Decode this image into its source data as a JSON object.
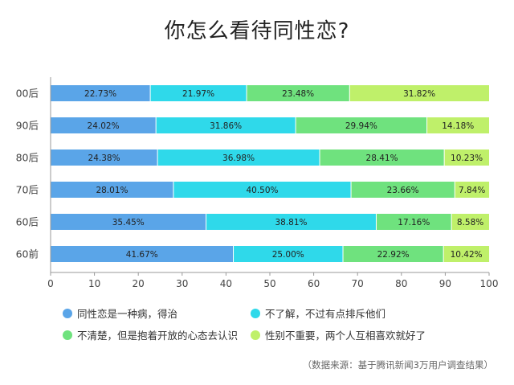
{
  "chart_data": {
    "type": "bar",
    "orientation": "horizontal",
    "stacked": true,
    "title": "你怎么看待同性恋?",
    "categories": [
      "00后",
      "90后",
      "80后",
      "70后",
      "60后",
      "60前"
    ],
    "series": [
      {
        "name": "同性恋是一种病，得治",
        "color": "#5aa5e8",
        "values": [
          22.73,
          24.02,
          24.38,
          28.01,
          35.45,
          41.67
        ]
      },
      {
        "name": "不了解，不过有点排斥他们",
        "color": "#2fd9ea",
        "values": [
          21.97,
          31.86,
          36.98,
          40.5,
          38.81,
          25.0
        ]
      },
      {
        "name": "不清楚，但是抱着开放的心态去认识",
        "color": "#6fe27e",
        "values": [
          23.48,
          29.94,
          28.41,
          23.66,
          17.16,
          22.92
        ]
      },
      {
        "name": "性别不重要，两个人互相喜欢就好了",
        "color": "#bff06a",
        "values": [
          31.82,
          14.18,
          10.23,
          7.84,
          8.58,
          10.42
        ]
      }
    ],
    "value_labels": [
      [
        "22.73%",
        "24.02%",
        "24.38%",
        "28.01%",
        "35.45%",
        "41.67%"
      ],
      [
        "21.97%",
        "31.86%",
        "36.98%",
        "40.50%",
        "38.81%",
        "25.00%"
      ],
      [
        "23.48%",
        "29.94%",
        "28.41%",
        "23.66%",
        "17.16%",
        "22.92%"
      ],
      [
        "31.82%",
        "14.18%",
        "10.23%",
        "7.84%",
        "8.58%",
        "10.42%"
      ]
    ],
    "xlim": [
      0,
      100
    ],
    "xticks": [
      "0",
      "10",
      "20",
      "30",
      "40",
      "50",
      "60",
      "70",
      "80",
      "90",
      "100"
    ],
    "grid": false,
    "legend_position": "bottom",
    "source_note": "（数据来源：基于腾讯新闻3万用户调查结果）"
  }
}
